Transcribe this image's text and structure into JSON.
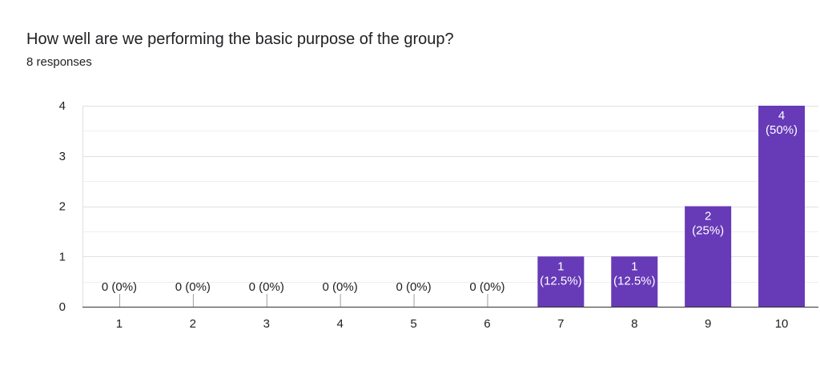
{
  "chart_data": {
    "type": "bar",
    "title": "How well are we performing the basic purpose of the group?",
    "subtitle": "8 responses",
    "categories": [
      "1",
      "2",
      "3",
      "4",
      "5",
      "6",
      "7",
      "8",
      "9",
      "10"
    ],
    "values": [
      0,
      0,
      0,
      0,
      0,
      0,
      1,
      1,
      2,
      4
    ],
    "data_labels": [
      "0 (0%)",
      "0 (0%)",
      "0 (0%)",
      "0 (0%)",
      "0 (0%)",
      "0 (0%)",
      "1 (12.5%)",
      "1 (12.5%)",
      "2 (25%)",
      "4 (50%)"
    ],
    "yticks": [
      0,
      1,
      2,
      3,
      4
    ],
    "ylim": [
      0,
      4
    ],
    "grid": true,
    "legend": "none",
    "bar_color": "#673ab7",
    "xlabel": "",
    "ylabel": ""
  }
}
